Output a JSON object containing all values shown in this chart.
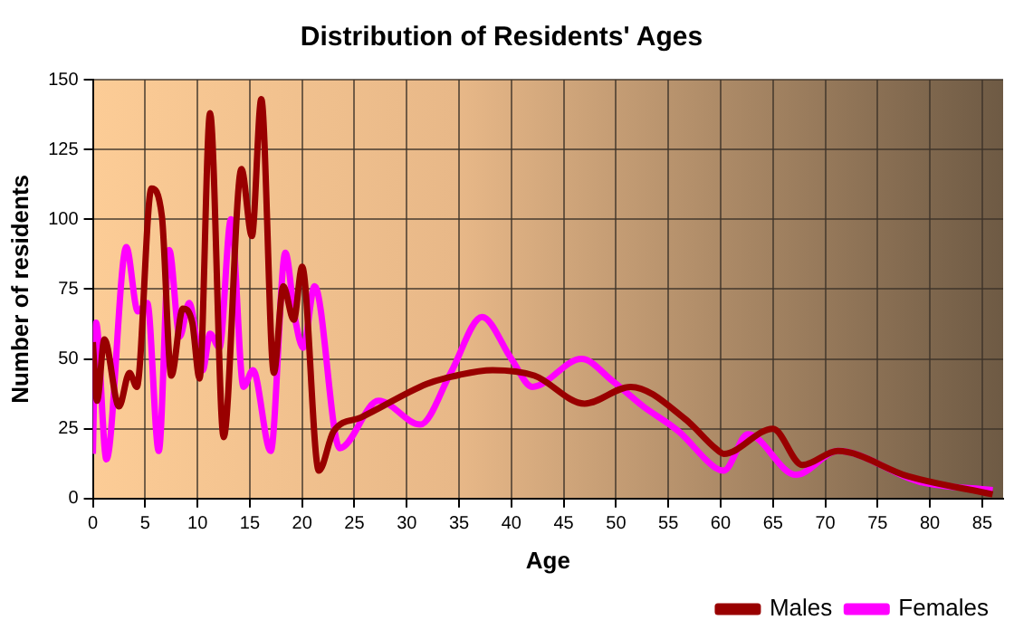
{
  "chart_data": {
    "type": "line",
    "title": "Distribution of Residents' Ages",
    "xlabel": "Age",
    "ylabel": "Number of residents",
    "xlim": [
      0,
      87
    ],
    "xticks": [
      0,
      5,
      10,
      15,
      20,
      25,
      30,
      35,
      40,
      45,
      50,
      55,
      60,
      65,
      70,
      75,
      80,
      85
    ],
    "ylim": [
      0,
      150
    ],
    "yticks": [
      0,
      25,
      50,
      75,
      100,
      125,
      150
    ],
    "grid": true,
    "legend": "bottom right",
    "marker": "none",
    "line_style": "solid",
    "series": [
      {
        "name": "Males",
        "color": "#990000",
        "x": [
          0,
          0.4,
          1.1,
          2.5,
          3.5,
          4.2,
          5.6,
          6.6,
          7.5,
          8.6,
          9.5,
          10.2,
          11.2,
          12.5,
          14.2,
          15.2,
          16.1,
          17.3,
          18.2,
          19.2,
          20,
          21.6,
          23,
          25.6,
          31.9,
          33.6,
          38.2,
          42.2,
          47,
          51.4,
          56.6,
          59.5,
          60.3,
          65,
          67.8,
          71.2,
          77.9,
          86
        ],
        "values": [
          56,
          35,
          57,
          33,
          45,
          40,
          111,
          101,
          44,
          68,
          63,
          43,
          138,
          22,
          118,
          94,
          143,
          45,
          76,
          64,
          83,
          10,
          24,
          29,
          41,
          43,
          46,
          44,
          34,
          40,
          28.5,
          18,
          16,
          25,
          12,
          17,
          8,
          1.5
        ]
      },
      {
        "name": "Females",
        "color": "#ff00ff",
        "x": [
          0,
          0.3,
          1.3,
          3.2,
          4.3,
          5.2,
          6.3,
          7.3,
          8.3,
          9.2,
          10.5,
          11.2,
          12.1,
          13.2,
          14.4,
          15.3,
          17,
          18.4,
          19.3,
          20.1,
          21.2,
          23.6,
          27.3,
          31.3,
          34.2,
          37.2,
          40,
          42,
          46.7,
          49.7,
          52.6,
          56,
          59.5,
          60.3,
          62.6,
          67.2,
          71.2,
          79,
          86
        ],
        "values": [
          16,
          63,
          14,
          90,
          67,
          70,
          17,
          89,
          58,
          70,
          46,
          59,
          54,
          100,
          40,
          46,
          17,
          88,
          65,
          54,
          76,
          18,
          35,
          26.5,
          45,
          65,
          50,
          40,
          50,
          42,
          33,
          24,
          11,
          10,
          23,
          8.5,
          17,
          6,
          3
        ]
      }
    ]
  }
}
